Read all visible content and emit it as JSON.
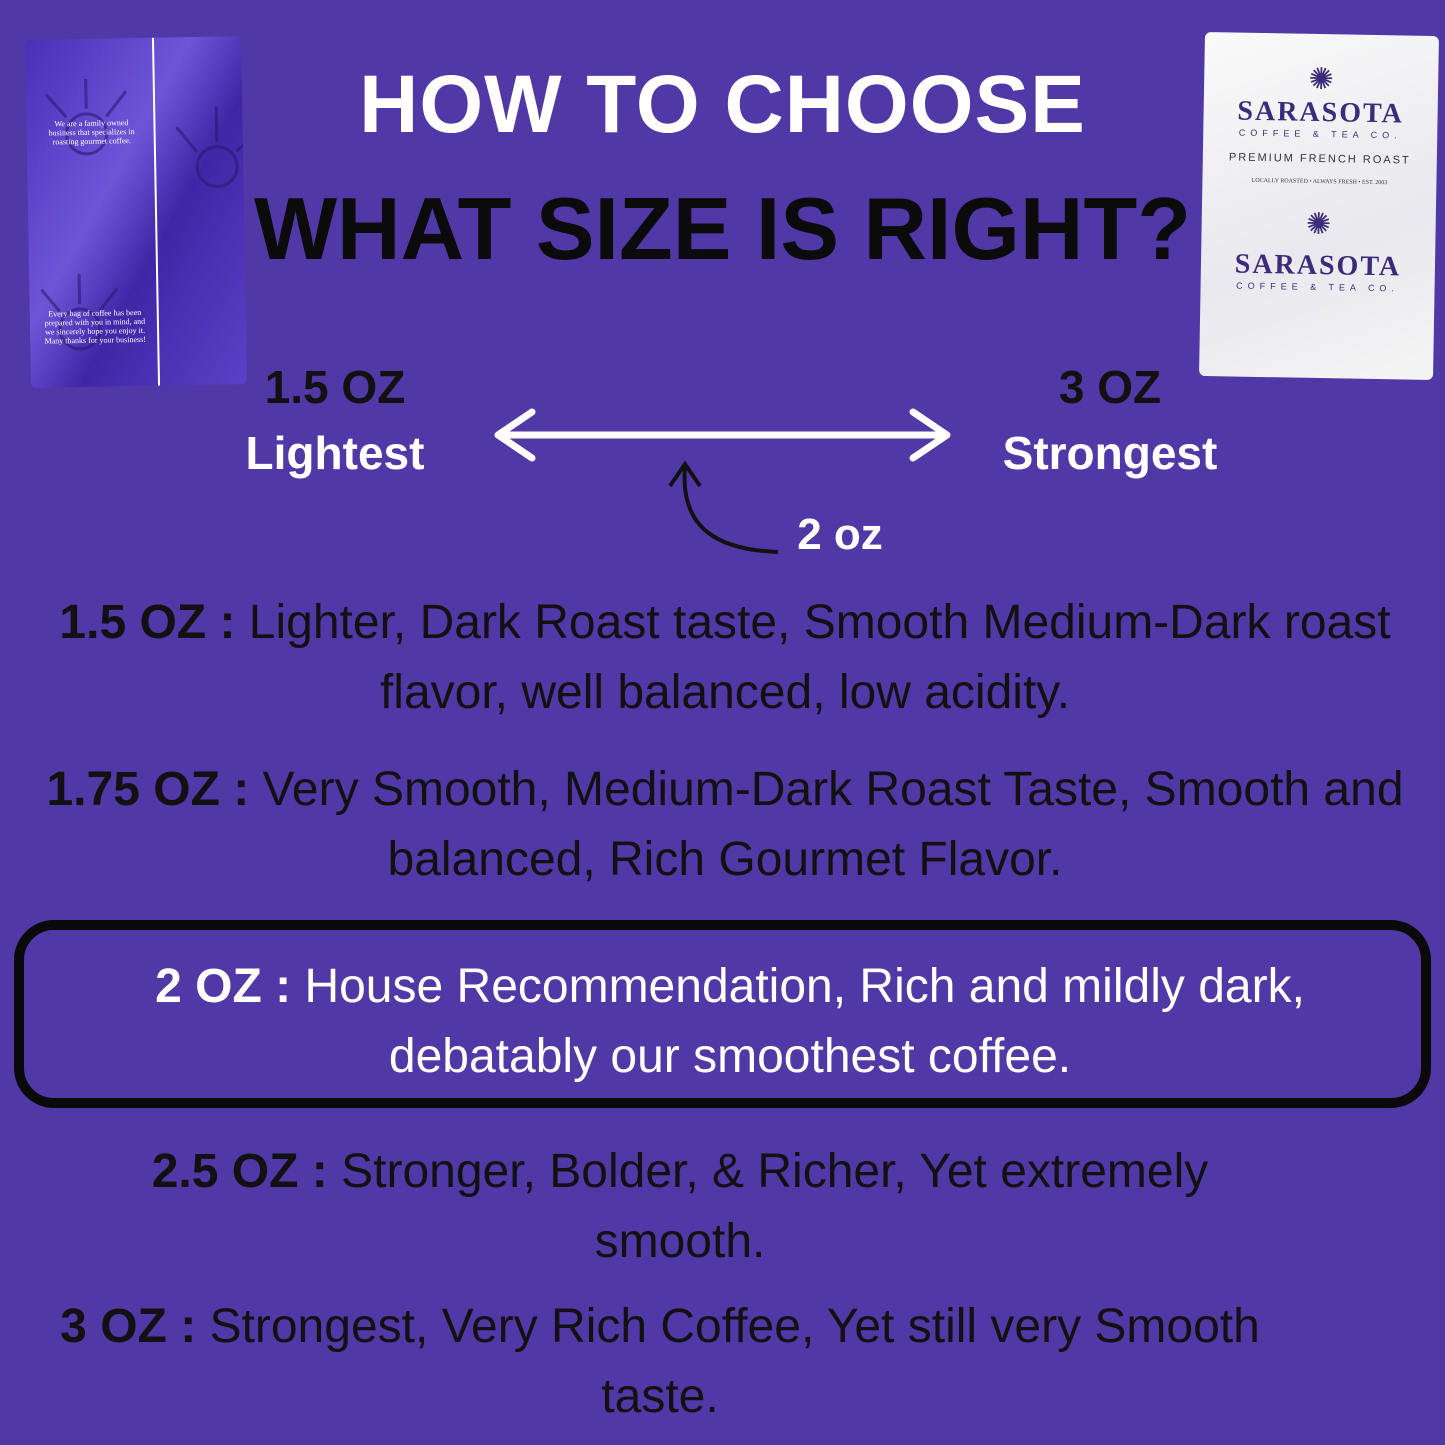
{
  "colors": {
    "background": "#5138a7",
    "headline_light": "#ffffff",
    "headline_dark": "#0b0b0b",
    "highlight_border": "#0a0a0a"
  },
  "header": {
    "line1": "HOW TO CHOOSE",
    "line2": "WHAT SIZE IS RIGHT?"
  },
  "scale": {
    "left_oz": "1.5 OZ",
    "left_label": "Lightest",
    "right_oz": "3 OZ",
    "right_label": "Strongest",
    "marker": "2 oz"
  },
  "products": {
    "back_bag": {
      "text1": "We are a family owned business that specializes in roasting gourmet coffee.",
      "text2": "Every bag of coffee has been prepared with you in mind, and we sincerely hope you enjoy it. Many thanks for your business!"
    },
    "front_bag": {
      "brand": "SARASOTA",
      "sub": "COFFEE & TEA CO.",
      "roast": "PREMIUM FRENCH ROAST",
      "tagline": "LOCALLY ROASTED • ALWAYS FRESH • EST. 2003"
    }
  },
  "sizes": [
    {
      "size": "1.5 OZ :",
      "description": " Lighter, Dark Roast taste, Smooth Medium-Dark roast flavor, well balanced, low acidity."
    },
    {
      "size": "1.75 OZ :",
      "description": " Very Smooth, Medium-Dark Roast Taste, Smooth and balanced, Rich Gourmet Flavor."
    },
    {
      "size": "2 OZ :",
      "description": " House Recommendation, Rich and mildly dark, debatably our smoothest coffee.",
      "highlighted": true
    },
    {
      "size": "2.5 OZ :",
      "description": " Stronger, Bolder, & Richer, Yet extremely smooth."
    },
    {
      "size": "3 OZ :",
      "description": " Strongest, Very Rich Coffee, Yet still very Smooth taste."
    }
  ]
}
